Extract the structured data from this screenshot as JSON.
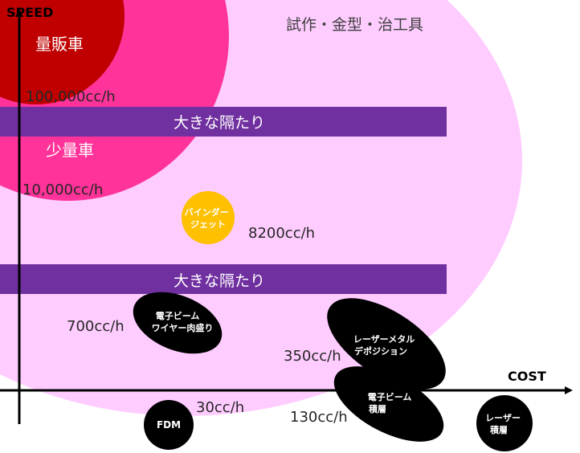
{
  "axes": {
    "y_label": "SPEED",
    "x_label": "COST"
  },
  "regions": {
    "prototype": "試作・金型・治工具",
    "mass_production": "量販車",
    "small_volume": "少量車"
  },
  "gaps": [
    {
      "label": "大きな隔たり"
    },
    {
      "label": "大きな隔たり"
    }
  ],
  "rates": {
    "r100000": "100,000cc/h",
    "r10000": "10,000cc/h",
    "r8200": "8200cc/h",
    "r700": "700cc/h",
    "r350": "350cc/h",
    "r30": "30cc/h",
    "r130": "130cc/h"
  },
  "processes": {
    "binder_jet": [
      "バインダー",
      "ジェット"
    ],
    "ebeam_wire": [
      "電子ビーム",
      "ワイヤー肉盛り"
    ],
    "laser_metal_deposition": [
      "レーザーメタル",
      "デポジション"
    ],
    "ebeam_layer": [
      "電子ビーム",
      "積層"
    ],
    "fdm": [
      "FDM"
    ],
    "laser_layer": [
      "レーザー",
      "積層"
    ]
  },
  "colors": {
    "outer_region": "#ffccff",
    "middle_region": "#ff3399",
    "inner_region": "#c00000",
    "gap_band": "#7030a0",
    "binder": "#ffc000",
    "process": "#000000"
  }
}
